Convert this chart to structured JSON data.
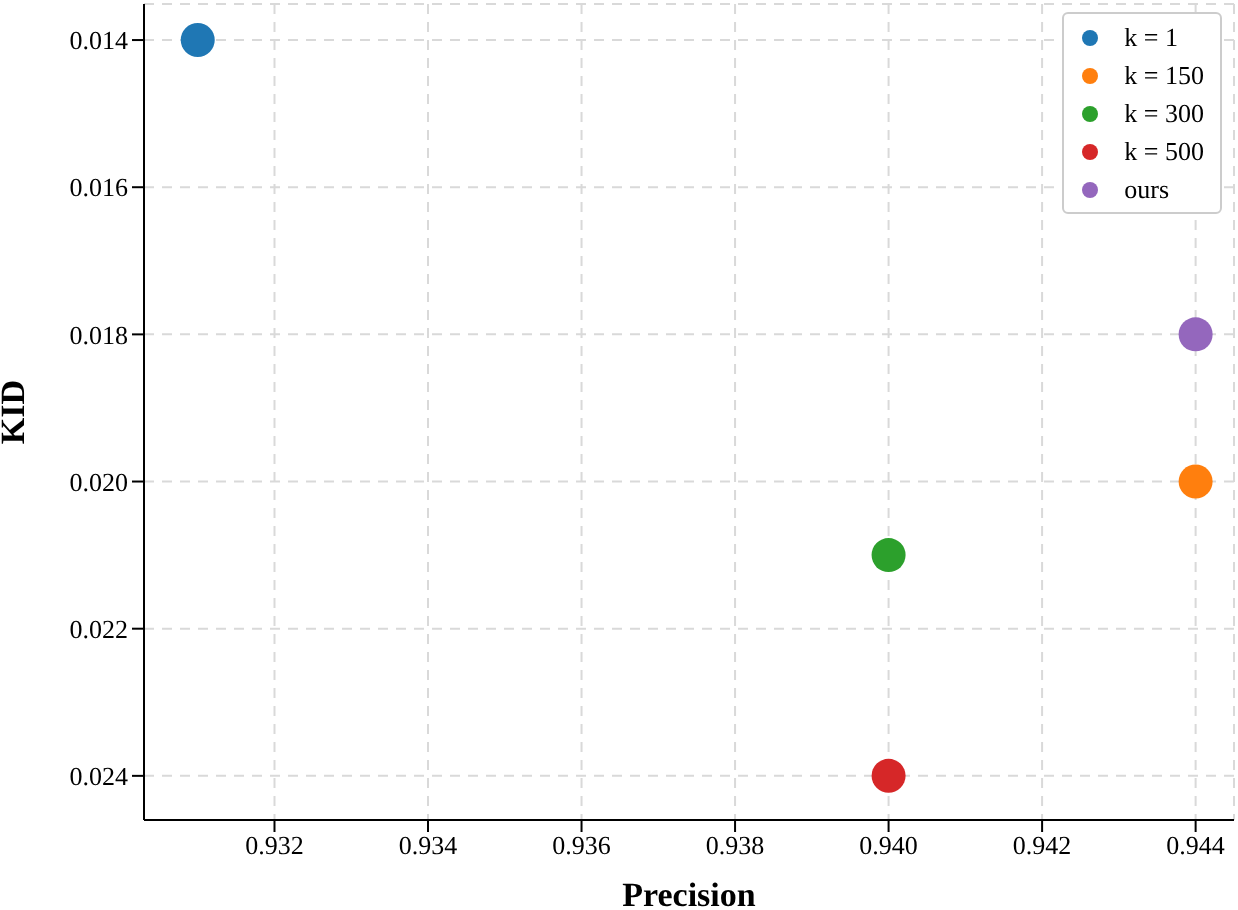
{
  "chart_data": {
    "type": "scatter",
    "xlabel": "Precision",
    "ylabel": "KID",
    "xlim": [
      0.9303,
      0.9445
    ],
    "ylim": [
      0.0246,
      0.01351
    ],
    "xticks": [
      {
        "value": 0.932,
        "label": "0.932"
      },
      {
        "value": 0.934,
        "label": "0.934"
      },
      {
        "value": 0.936,
        "label": "0.936"
      },
      {
        "value": 0.938,
        "label": "0.938"
      },
      {
        "value": 0.94,
        "label": "0.940"
      },
      {
        "value": 0.942,
        "label": "0.942"
      },
      {
        "value": 0.944,
        "label": "0.944"
      }
    ],
    "yticks": [
      {
        "value": 0.014,
        "label": "0.014"
      },
      {
        "value": 0.016,
        "label": "0.016"
      },
      {
        "value": 0.018,
        "label": "0.018"
      },
      {
        "value": 0.02,
        "label": "0.020"
      },
      {
        "value": 0.022,
        "label": "0.022"
      },
      {
        "value": 0.024,
        "label": "0.024"
      }
    ],
    "series": [
      {
        "name": "k = 1",
        "color": "#1f77b4",
        "x": [
          0.931
        ],
        "values": [
          0.014
        ]
      },
      {
        "name": "k = 150",
        "color": "#ff7f0e",
        "x": [
          0.944
        ],
        "values": [
          0.02
        ]
      },
      {
        "name": "k = 300",
        "color": "#2ca02c",
        "x": [
          0.94
        ],
        "values": [
          0.021
        ]
      },
      {
        "name": "k = 500",
        "color": "#d62728",
        "x": [
          0.94
        ],
        "values": [
          0.024
        ]
      },
      {
        "name": "ours",
        "color": "#9467bd",
        "x": [
          0.944
        ],
        "values": [
          0.018
        ]
      }
    ],
    "grid": true,
    "legend": "top right",
    "marker": "circle"
  }
}
